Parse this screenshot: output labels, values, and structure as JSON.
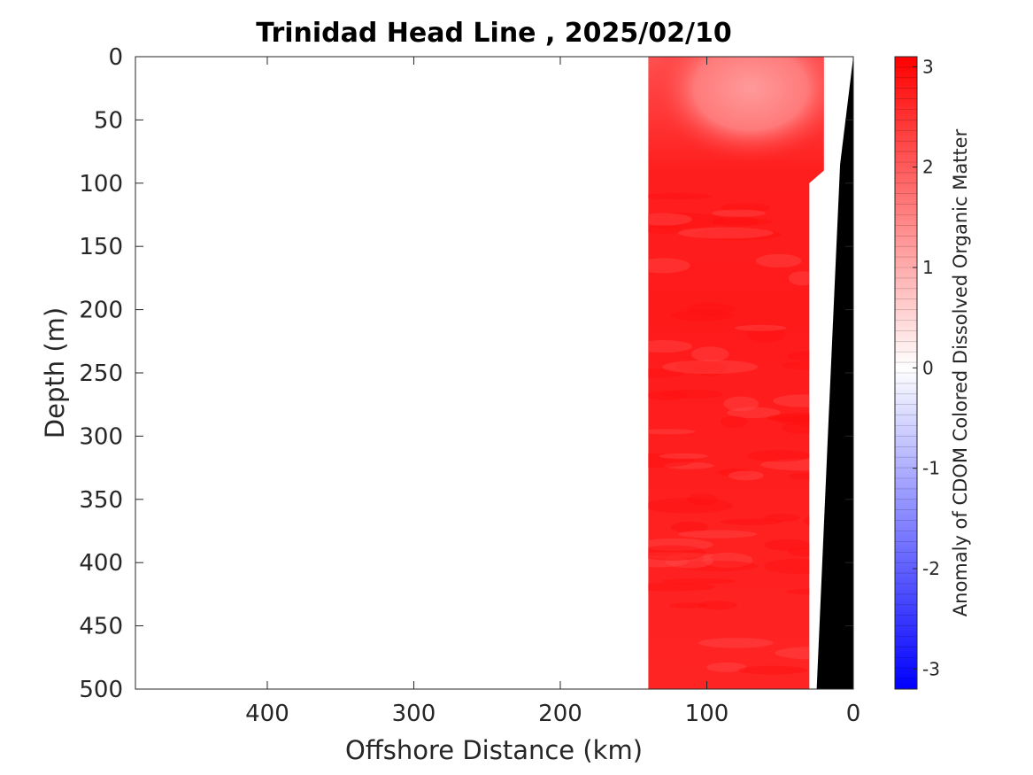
{
  "chart_data": {
    "type": "heatmap",
    "title": "Trinidad Head Line , 2025/02/10",
    "xlabel": "Offshore Distance (km)",
    "ylabel": "Depth (m)",
    "xlim": [
      490,
      0
    ],
    "ylim": [
      0,
      500
    ],
    "x_reversed": true,
    "y_reversed": true,
    "x_ticks": [
      400,
      300,
      200,
      100,
      0
    ],
    "x_tick_labels": [
      "400",
      "300",
      "200",
      "100",
      "0"
    ],
    "y_ticks": [
      0,
      50,
      100,
      150,
      200,
      250,
      300,
      350,
      400,
      450,
      500
    ],
    "y_tick_labels": [
      "0",
      "50",
      "100",
      "150",
      "200",
      "250",
      "300",
      "350",
      "400",
      "450",
      "500"
    ],
    "colorbar": {
      "label": "Anomaly of CDOM Colored Dissolved Organic Matter",
      "range": [
        -3.2,
        3.1
      ],
      "ticks": [
        3,
        2,
        1,
        0,
        -1,
        -2,
        -3
      ],
      "tick_labels": [
        "3",
        "2",
        "1",
        "0",
        "-1",
        "-2",
        "-3"
      ],
      "color_low": "#0000ff",
      "color_mid": "#ffffff",
      "color_high": "#ff0000",
      "levels": 60
    },
    "data_region": {
      "x_range_km": [
        140,
        20
      ],
      "depth_range_m": [
        0,
        500
      ],
      "dominant_anomaly": 2.7,
      "surface_patch": {
        "x_center_km": 70,
        "depth_center_m": 25,
        "anomaly": 1.5
      },
      "inner_edge_km": [
        [
          20,
          0
        ],
        [
          20,
          90
        ],
        [
          30,
          100
        ],
        [
          30,
          500
        ]
      ]
    },
    "bathymetry": {
      "fill_color": "#000000",
      "seafloor": [
        [
          0,
          0
        ],
        [
          9,
          85
        ],
        [
          17,
          290
        ],
        [
          25,
          500
        ]
      ]
    }
  }
}
